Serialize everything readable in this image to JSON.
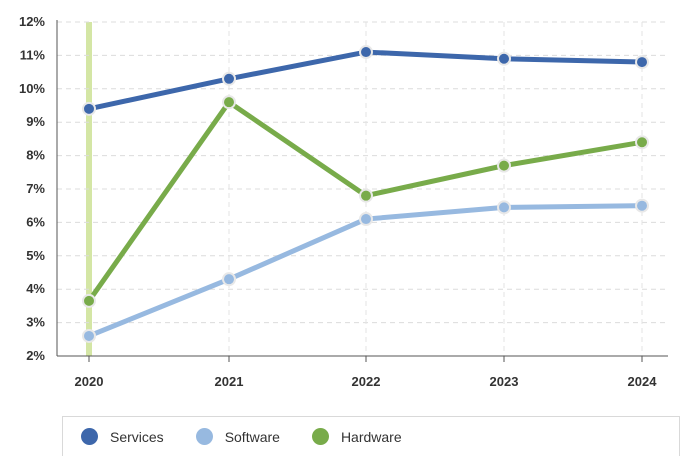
{
  "chart_data": {
    "type": "line",
    "x": [
      "2020",
      "2021",
      "2022",
      "2023",
      "2024"
    ],
    "ylim": [
      2,
      12
    ],
    "yticks": [
      "2%",
      "3%",
      "4%",
      "5%",
      "6%",
      "7%",
      "8%",
      "9%",
      "10%",
      "11%",
      "12%"
    ],
    "grid": true,
    "legend_position": "bottom",
    "highlight_x": "2020",
    "highlight_color": "#d4e6a5",
    "series": [
      {
        "name": "Services",
        "color": "#3d67ab",
        "values": [
          9.4,
          10.3,
          11.1,
          10.9,
          10.8
        ]
      },
      {
        "name": "Software",
        "color": "#97b9e0",
        "values": [
          2.6,
          4.3,
          6.1,
          6.45,
          6.5
        ]
      },
      {
        "name": "Hardware",
        "color": "#78ab4a",
        "values": [
          3.65,
          9.6,
          6.8,
          7.7,
          8.4
        ]
      }
    ]
  }
}
